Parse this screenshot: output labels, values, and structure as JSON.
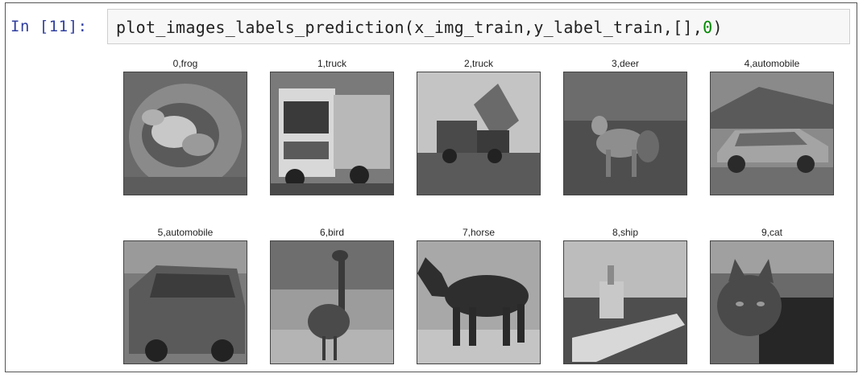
{
  "cell": {
    "prompt": "In [11]:",
    "code_text": "plot_images_labels_prediction(x_img_train,y_label_train,[],",
    "code_zero": "0",
    "code_close": ")"
  },
  "output": {
    "images": [
      {
        "caption": "0,frog",
        "icon": "frog-image"
      },
      {
        "caption": "1,truck",
        "icon": "truck-image"
      },
      {
        "caption": "2,truck",
        "icon": "truck-image"
      },
      {
        "caption": "3,deer",
        "icon": "deer-image"
      },
      {
        "caption": "4,automobile",
        "icon": "automobile-image"
      },
      {
        "caption": "5,automobile",
        "icon": "automobile-image"
      },
      {
        "caption": "6,bird",
        "icon": "bird-image"
      },
      {
        "caption": "7,horse",
        "icon": "horse-image"
      },
      {
        "caption": "8,ship",
        "icon": "ship-image"
      },
      {
        "caption": "9,cat",
        "icon": "cat-image"
      }
    ]
  },
  "colors": {
    "prompt": "#303f9f",
    "input_bg": "#f7f7f7",
    "number_literal": "#008800"
  }
}
